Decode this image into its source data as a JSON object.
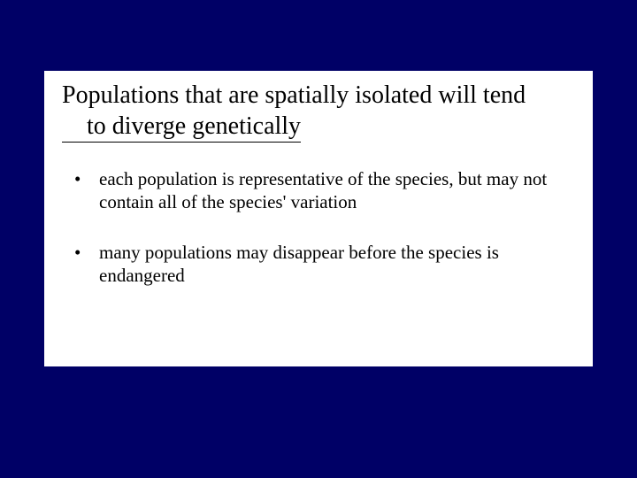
{
  "slide": {
    "background_color": "#000066",
    "content_background": "#ffffff",
    "text_color": "#000000",
    "title_fontsize": 28,
    "body_fontsize": 21,
    "font_family": "Times New Roman",
    "title_line1": "Populations that are spatially isolated will tend",
    "title_line2": "to diverge genetically",
    "bullets": [
      "each population is representative of the species, but may not contain all of the species' variation",
      "many populations may disappear before the species is endangered"
    ]
  }
}
